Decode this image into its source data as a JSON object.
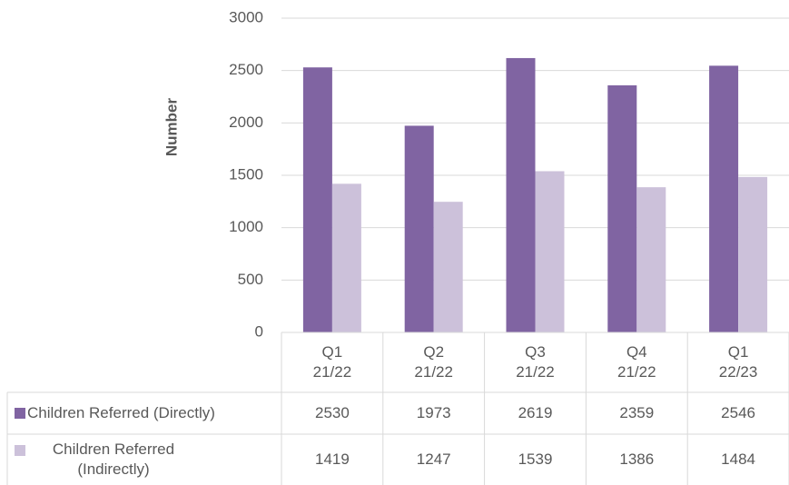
{
  "chart_data": {
    "type": "bar",
    "y_label": "Number",
    "categories": [
      "Q1 21/22",
      "Q2 21/22",
      "Q3 21/22",
      "Q4 21/22",
      "Q1 22/23"
    ],
    "series": [
      {
        "name": "Children Referred (Directly)",
        "color": "#8064a2",
        "values": [
          2530,
          1973,
          2619,
          2359,
          2546
        ]
      },
      {
        "name": "Children Referred (Indirectly)",
        "color": "#ccc1da",
        "values": [
          1419,
          1247,
          1539,
          1386,
          1484
        ]
      }
    ],
    "ylim": [
      0,
      3000
    ],
    "yticks": [
      0,
      500,
      1000,
      1500,
      2000,
      2500,
      3000
    ],
    "grid": true,
    "data_table": true
  }
}
